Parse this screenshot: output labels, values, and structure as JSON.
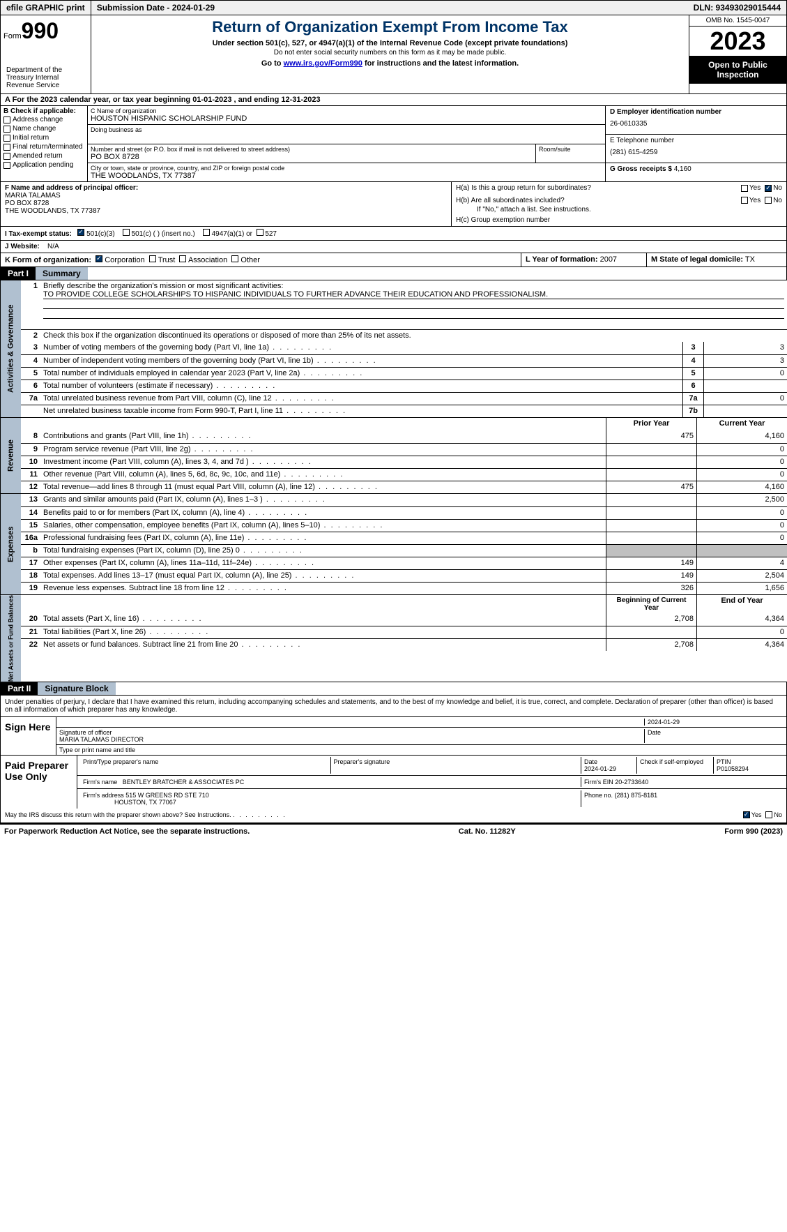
{
  "topbar": {
    "efile": "efile GRAPHIC print",
    "submission": "Submission Date - 2024-01-29",
    "dln": "DLN: 93493029015444"
  },
  "header": {
    "form_prefix": "Form",
    "form_num": "990",
    "dept": "Department of the Treasury Internal Revenue Service",
    "title": "Return of Organization Exempt From Income Tax",
    "sub": "Under section 501(c), 527, or 4947(a)(1) of the Internal Revenue Code (except private foundations)",
    "note": "Do not enter social security numbers on this form as it may be made public.",
    "goto_pre": "Go to ",
    "goto_link": "www.irs.gov/Form990",
    "goto_post": " for instructions and the latest information.",
    "omb": "OMB No. 1545-0047",
    "year": "2023",
    "open": "Open to Public Inspection"
  },
  "line_a": "A For the 2023 calendar year, or tax year beginning 01-01-2023   , and ending 12-31-2023",
  "section_b": {
    "label": "B Check if applicable:",
    "items": [
      "Address change",
      "Name change",
      "Initial return",
      "Final return/terminated",
      "Amended return",
      "Application pending"
    ]
  },
  "section_c": {
    "name_label": "C Name of organization",
    "name": "HOUSTON HISPANIC SCHOLARSHIP FUND",
    "dba_label": "Doing business as",
    "addr_label": "Number and street (or P.O. box if mail is not delivered to street address)",
    "addr": "PO BOX 8728",
    "room_label": "Room/suite",
    "city_label": "City or town, state or province, country, and ZIP or foreign postal code",
    "city": "THE WOODLANDS, TX  77387"
  },
  "section_d": {
    "ein_label": "D Employer identification number",
    "ein": "26-0610335",
    "phone_label": "E Telephone number",
    "phone": "(281) 615-4259",
    "receipts_label": "G Gross receipts $",
    "receipts": "4,160"
  },
  "section_f": {
    "label": "F  Name and address of principal officer:",
    "name": "MARIA TALAMAS",
    "addr1": "PO BOX 8728",
    "addr2": "THE WOODLANDS, TX  77387"
  },
  "section_h": {
    "ha": "H(a)  Is this a group return for subordinates?",
    "hb": "H(b)  Are all subordinates included?",
    "hb_note": "If \"No,\" attach a list. See instructions.",
    "hc": "H(c)  Group exemption number"
  },
  "tax_exempt": {
    "label": "I   Tax-exempt status:",
    "opt1": "501(c)(3)",
    "opt2": "501(c) (  ) (insert no.)",
    "opt3": "4947(a)(1) or",
    "opt4": "527"
  },
  "website": {
    "label": "J   Website:",
    "val": "N/A"
  },
  "section_k": {
    "label": "K Form of organization:",
    "opts": [
      "Corporation",
      "Trust",
      "Association",
      "Other"
    ]
  },
  "section_l": {
    "label": "L Year of formation:",
    "val": "2007"
  },
  "section_m": {
    "label": "M State of legal domicile:",
    "val": "TX"
  },
  "part1": {
    "head": "Part I",
    "title": "Summary"
  },
  "summary": {
    "governance_label": "Activities & Governance",
    "revenue_label": "Revenue",
    "expenses_label": "Expenses",
    "netassets_label": "Net Assets or Fund Balances",
    "line1_label": "Briefly describe the organization's mission or most significant activities:",
    "line1_text": "TO PROVIDE COLLEGE SCHOLARSHIPS TO HISPANIC INDIVIDUALS TO FURTHER ADVANCE THEIR EDUCATION AND PROFESSIONALISM.",
    "line2": "Check this box      if the organization discontinued its operations or disposed of more than 25% of its net assets.",
    "lines_gov": [
      {
        "n": "3",
        "t": "Number of voting members of the governing body (Part VI, line 1a)",
        "box": "3",
        "v": "3"
      },
      {
        "n": "4",
        "t": "Number of independent voting members of the governing body (Part VI, line 1b)",
        "box": "4",
        "v": "3"
      },
      {
        "n": "5",
        "t": "Total number of individuals employed in calendar year 2023 (Part V, line 2a)",
        "box": "5",
        "v": "0"
      },
      {
        "n": "6",
        "t": "Total number of volunteers (estimate if necessary)",
        "box": "6",
        "v": ""
      },
      {
        "n": "7a",
        "t": "Total unrelated business revenue from Part VIII, column (C), line 12",
        "box": "7a",
        "v": "0"
      },
      {
        "n": "",
        "t": "Net unrelated business taxable income from Form 990-T, Part I, line 11",
        "box": "7b",
        "v": ""
      }
    ],
    "col_prior": "Prior Year",
    "col_curr": "Current Year",
    "lines_rev": [
      {
        "n": "8",
        "t": "Contributions and grants (Part VIII, line 1h)",
        "p": "475",
        "c": "4,160"
      },
      {
        "n": "9",
        "t": "Program service revenue (Part VIII, line 2g)",
        "p": "",
        "c": "0"
      },
      {
        "n": "10",
        "t": "Investment income (Part VIII, column (A), lines 3, 4, and 7d )",
        "p": "",
        "c": "0"
      },
      {
        "n": "11",
        "t": "Other revenue (Part VIII, column (A), lines 5, 6d, 8c, 9c, 10c, and 11e)",
        "p": "",
        "c": "0"
      },
      {
        "n": "12",
        "t": "Total revenue—add lines 8 through 11 (must equal Part VIII, column (A), line 12)",
        "p": "475",
        "c": "4,160"
      }
    ],
    "lines_exp": [
      {
        "n": "13",
        "t": "Grants and similar amounts paid (Part IX, column (A), lines 1–3 )",
        "p": "",
        "c": "2,500"
      },
      {
        "n": "14",
        "t": "Benefits paid to or for members (Part IX, column (A), line 4)",
        "p": "",
        "c": "0"
      },
      {
        "n": "15",
        "t": "Salaries, other compensation, employee benefits (Part IX, column (A), lines 5–10)",
        "p": "",
        "c": "0"
      },
      {
        "n": "16a",
        "t": "Professional fundraising fees (Part IX, column (A), line 11e)",
        "p": "",
        "c": "0"
      },
      {
        "n": "b",
        "t": "Total fundraising expenses (Part IX, column (D), line 25) 0",
        "p": "grey",
        "c": "grey"
      },
      {
        "n": "17",
        "t": "Other expenses (Part IX, column (A), lines 11a–11d, 11f–24e)",
        "p": "149",
        "c": "4"
      },
      {
        "n": "18",
        "t": "Total expenses. Add lines 13–17 (must equal Part IX, column (A), line 25)",
        "p": "149",
        "c": "2,504"
      },
      {
        "n": "19",
        "t": "Revenue less expenses. Subtract line 18 from line 12",
        "p": "326",
        "c": "1,656"
      }
    ],
    "col_begin": "Beginning of Current Year",
    "col_end": "End of Year",
    "lines_net": [
      {
        "n": "20",
        "t": "Total assets (Part X, line 16)",
        "p": "2,708",
        "c": "4,364"
      },
      {
        "n": "21",
        "t": "Total liabilities (Part X, line 26)",
        "p": "",
        "c": "0"
      },
      {
        "n": "22",
        "t": "Net assets or fund balances. Subtract line 21 from line 20",
        "p": "2,708",
        "c": "4,364"
      }
    ]
  },
  "part2": {
    "head": "Part II",
    "title": "Signature Block"
  },
  "sig": {
    "declaration": "Under penalties of perjury, I declare that I have examined this return, including accompanying schedules and statements, and to the best of my knowledge and belief, it is true, correct, and complete. Declaration of preparer (other than officer) is based on all information of which preparer has any knowledge.",
    "sign_here": "Sign Here",
    "sig_date": "2024-01-29",
    "sig_officer_label": "Signature of officer",
    "sig_officer": "MARIA TALAMAS DIRECTOR",
    "sig_name_label": "Type or print name and title",
    "date_label": "Date",
    "paid": "Paid Preparer Use Only",
    "prep_name_label": "Print/Type preparer's name",
    "prep_sig_label": "Preparer's signature",
    "prep_date_label": "Date",
    "prep_date": "2024-01-29",
    "prep_check": "Check      if self-employed",
    "ptin_label": "PTIN",
    "ptin": "P01058294",
    "firm_name_label": "Firm's name",
    "firm_name": "BENTLEY BRATCHER & ASSOCIATES PC",
    "firm_ein_label": "Firm's EIN",
    "firm_ein": "20-2733640",
    "firm_addr_label": "Firm's address",
    "firm_addr1": "515 W GREENS RD STE 710",
    "firm_addr2": "HOUSTON, TX  77067",
    "firm_phone_label": "Phone no.",
    "firm_phone": "(281) 875-8181",
    "discuss": "May the IRS discuss this return with the preparer shown above? See Instructions."
  },
  "footer": {
    "left": "For Paperwork Reduction Act Notice, see the separate instructions.",
    "mid": "Cat. No. 11282Y",
    "right_pre": "Form ",
    "right_form": "990",
    "right_post": " (2023)"
  },
  "labels": {
    "yes": "Yes",
    "no": "No"
  }
}
